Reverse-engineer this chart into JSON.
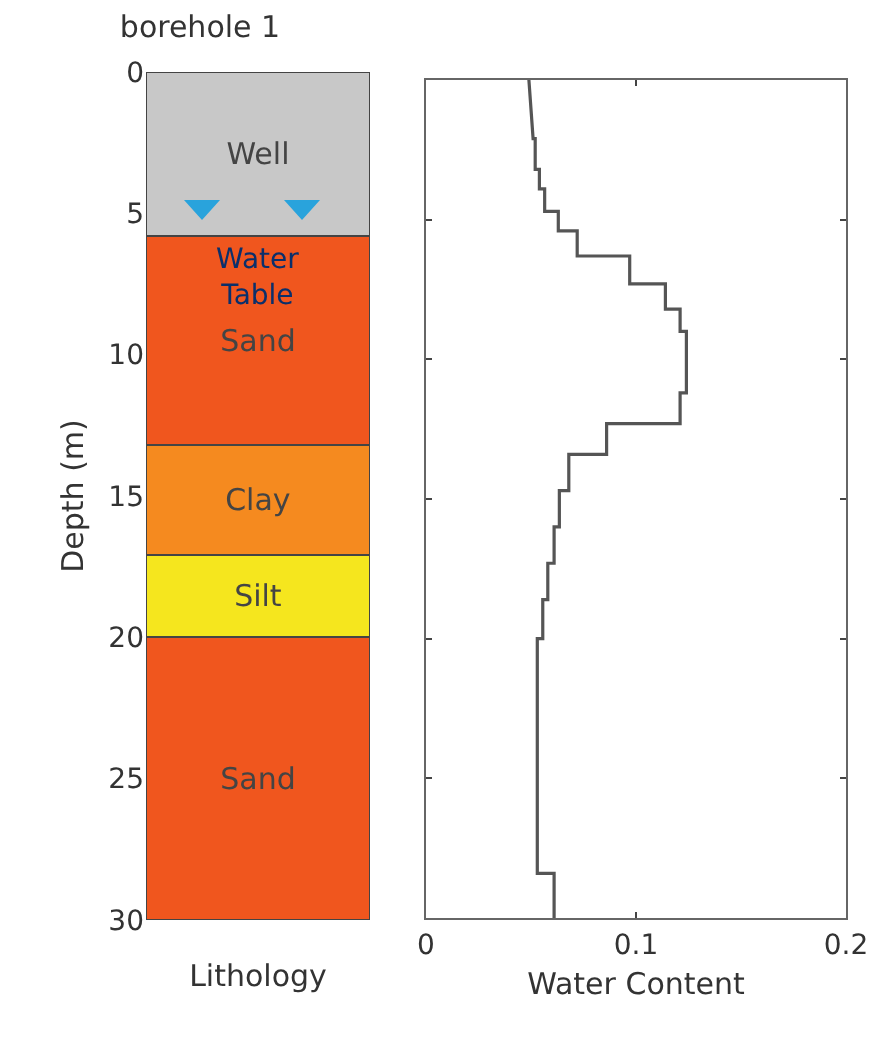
{
  "chart_data": [
    {
      "type": "bar",
      "title": "borehole 1",
      "xlabel": "Lithology",
      "ylabel": "Depth (m)",
      "categories": [
        null
      ],
      "stacked": true,
      "series": [
        {
          "name": "Well",
          "color": "#c8c8c8",
          "values": [
            5.8
          ]
        },
        {
          "name": "Sand",
          "color": "#f0561e",
          "values": [
            7.4
          ]
        },
        {
          "name": "Clay",
          "color": "#f58a1f",
          "values": [
            3.9
          ]
        },
        {
          "name": "Silt",
          "color": "#f5e61e",
          "values": [
            2.9
          ]
        },
        {
          "name": "Sand",
          "color": "#f0561e",
          "values": [
            10
          ]
        }
      ],
      "annotations": [
        {
          "text": "Water Table",
          "y": 5.8
        }
      ],
      "ylim": [
        30,
        0
      ],
      "yticks": [
        0,
        5,
        10,
        15,
        20,
        25,
        30
      ],
      "tick_labels": "y"
    },
    {
      "type": "line",
      "xlabel": "Water Content",
      "color": "#555555",
      "x": [
        0.049,
        0.051,
        0.052,
        0.052,
        0.054,
        0.054,
        0.0565,
        0.0565,
        0.063,
        0.063,
        0.072,
        0.072,
        0.097,
        0.097,
        0.114,
        0.114,
        0.121,
        0.121,
        0.124,
        0.124,
        0.121,
        0.121,
        0.086,
        0.086,
        0.068,
        0.068,
        0.0635,
        0.0635,
        0.061,
        0.061,
        0.058,
        0.058,
        0.0556,
        0.0556,
        0.053,
        0.053,
        0.061,
        0.061
      ],
      "values": [
        0,
        2.1,
        2.1,
        3.2,
        3.2,
        3.9,
        3.9,
        4.7,
        4.7,
        5.4,
        5.4,
        6.3,
        6.3,
        7.3,
        7.3,
        8.2,
        8.2,
        9.0,
        9.0,
        11.2,
        11.2,
        12.3,
        12.3,
        13.4,
        13.4,
        14.7,
        14.7,
        16.0,
        16.0,
        17.3,
        17.3,
        18.6,
        18.6,
        20.0,
        20.0,
        28.4,
        28.4,
        30
      ],
      "xlim": [
        0,
        0.2
      ],
      "xticks": [
        0,
        0.1,
        0.2
      ],
      "ylim": [
        30,
        0
      ],
      "yticks": [
        0,
        5,
        10,
        15,
        20,
        25,
        30
      ],
      "tick_labels": "x"
    }
  ]
}
